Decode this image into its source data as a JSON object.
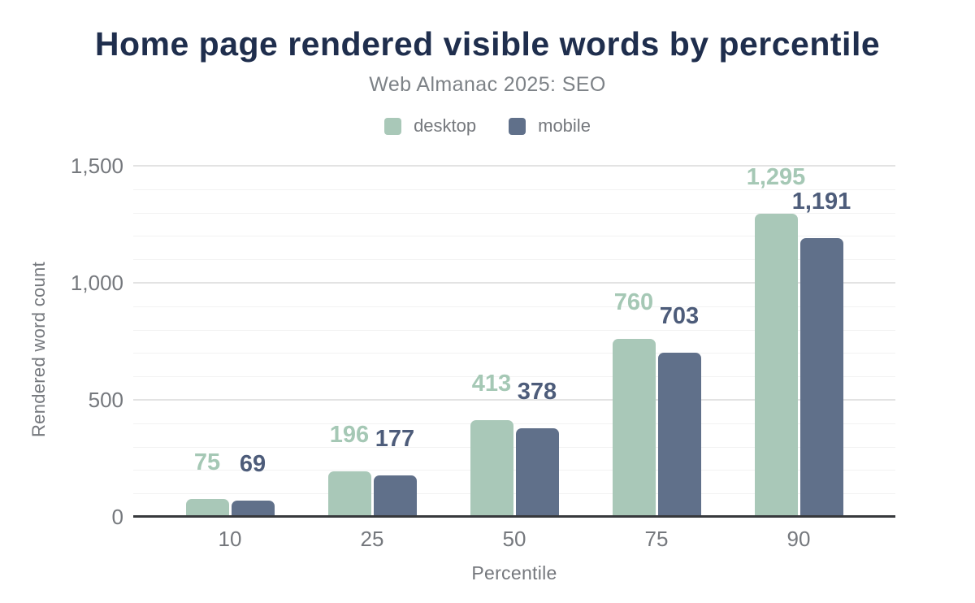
{
  "chart_data": {
    "type": "bar",
    "title": "Home page rendered visible words by percentile",
    "subtitle": "Web Almanac 2025: SEO",
    "categories": [
      "10",
      "25",
      "50",
      "75",
      "90"
    ],
    "series": [
      {
        "name": "desktop",
        "color": "#a9c8b8",
        "label_color": "#a5c8b5",
        "values": [
          75,
          196,
          413,
          760,
          1295
        ],
        "value_labels": [
          "75",
          "196",
          "413",
          "760",
          "1,295"
        ]
      },
      {
        "name": "mobile",
        "color": "#60708a",
        "label_color": "#4d5c7a",
        "values": [
          69,
          177,
          378,
          703,
          1191
        ],
        "value_labels": [
          "69",
          "177",
          "378",
          "703",
          "1,191"
        ]
      }
    ],
    "xlabel": "Percentile",
    "ylabel": "Rendered word count",
    "ylim": [
      0,
      1500
    ],
    "yticks": [
      {
        "value": 0,
        "label": "0"
      },
      {
        "value": 500,
        "label": "500"
      },
      {
        "value": 1000,
        "label": "1,000"
      },
      {
        "value": 1500,
        "label": "1,500"
      }
    ],
    "minor_gridline_step": 100,
    "major_gridline_step": 500,
    "grid": true,
    "legend_position": "top",
    "value_labels_shown": true
  },
  "colors": {
    "background": "#ffffff",
    "title": "#1f2e4d",
    "subtitle": "#7d8287",
    "axis_text": "#75787d",
    "axis_line": "#37393c",
    "gridline_major": "#e3e3e3",
    "gridline_minor": "#f2f2f2"
  }
}
